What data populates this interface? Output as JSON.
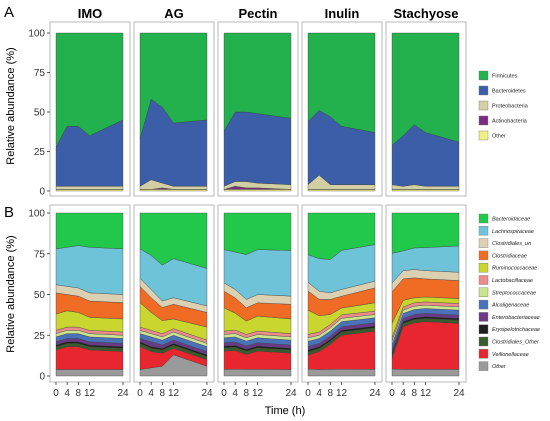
{
  "panel_labels": [
    "A",
    "B"
  ],
  "x_axis": {
    "title": "Time (h)"
  },
  "y_axis": {
    "title": "Relative abundance (%)"
  },
  "chart_data": [
    {
      "type": "area",
      "panel": "A",
      "stacking": "percent",
      "facets": [
        "IMO",
        "AG",
        "Pectin",
        "Inulin",
        "Stachyose"
      ],
      "x": [
        0,
        4,
        8,
        12,
        24
      ],
      "x_ticks": [
        "0",
        "4",
        "8",
        "12",
        "24"
      ],
      "ylim": [
        0,
        100
      ],
      "y_ticks": [
        "0",
        "25",
        "50",
        "75",
        "100"
      ],
      "ylabel": "Relative abundance (%)",
      "xlabel": "Time (h)",
      "grid": false,
      "legend_position": "right",
      "series": [
        {
          "name": "Other",
          "color": "#f0ef86",
          "values_by_facet": [
            [
              1,
              1,
              1,
              1,
              1
            ],
            [
              1,
              1,
              1,
              1,
              1
            ],
            [
              1,
              1,
              1,
              1,
              1
            ],
            [
              1,
              1,
              1,
              1,
              1
            ],
            [
              1,
              1,
              1,
              1,
              1
            ]
          ]
        },
        {
          "name": "Actinobacteria",
          "color": "#7b2d80",
          "values_by_facet": [
            [
              0,
              0,
              0,
              0,
              0
            ],
            [
              0,
              0,
              1,
              0,
              0
            ],
            [
              0,
              2,
              1,
              1,
              0
            ],
            [
              0,
              0,
              0,
              0,
              0
            ],
            [
              0,
              0,
              0,
              0,
              0
            ]
          ]
        },
        {
          "name": "Proteobacteria",
          "color": "#d2cfa4",
          "values_by_facet": [
            [
              2,
              2,
              2,
              2,
              2
            ],
            [
              2,
              6,
              3,
              2,
              2
            ],
            [
              2,
              3,
              4,
              3,
              3
            ],
            [
              3,
              9,
              3,
              3,
              3
            ],
            [
              3,
              2,
              3,
              2,
              2
            ]
          ]
        },
        {
          "name": "Bacteroidetes",
          "color": "#3c5ea9",
          "values_by_facet": [
            [
              25,
              38,
              38,
              32,
              42
            ],
            [
              30,
              50,
              48,
              40,
              42
            ],
            [
              35,
              44,
              44,
              44,
              42
            ],
            [
              40,
              41,
              43,
              37,
              33
            ],
            [
              25,
              32,
              38,
              34,
              28
            ]
          ]
        },
        {
          "name": "Firmicutes",
          "color": "#22b14c",
          "values_by_facet": [
            [
              72,
              59,
              59,
              65,
              55
            ],
            [
              67,
              41,
              47,
              57,
              55
            ],
            [
              62,
              50,
              50,
              51,
              54
            ],
            [
              56,
              49,
              53,
              59,
              63
            ],
            [
              71,
              65,
              58,
              63,
              69
            ]
          ]
        }
      ]
    },
    {
      "type": "area",
      "panel": "B",
      "stacking": "percent",
      "facets": [
        "IMO",
        "AG",
        "Pectin",
        "Inulin",
        "Stachyose"
      ],
      "x": [
        0,
        4,
        8,
        12,
        24
      ],
      "x_ticks": [
        "0",
        "4",
        "8",
        "12",
        "24"
      ],
      "ylim": [
        0,
        100
      ],
      "y_ticks": [
        "0",
        "25",
        "50",
        "75",
        "100"
      ],
      "ylabel": "Relative abundance (%)",
      "xlabel": "Time (h)",
      "grid": false,
      "legend_position": "right",
      "series": [
        {
          "name": "Other",
          "color": "#9a9a9a",
          "values_by_facet": [
            [
              4,
              4,
              4,
              4,
              4
            ],
            [
              4,
              5,
              6,
              13,
              6
            ],
            [
              4,
              4,
              4,
              4,
              4
            ],
            [
              4,
              4,
              4,
              4,
              4
            ],
            [
              4,
              4,
              4,
              4,
              4
            ]
          ]
        },
        {
          "name": "Veillonellaceae",
          "color": "#e8262f",
          "values_by_facet": [
            [
              12,
              14,
              14,
              12,
              11
            ],
            [
              14,
              10,
              8,
              4,
              4
            ],
            [
              11,
              11,
              9,
              11,
              10
            ],
            [
              8,
              11,
              15,
              20,
              23
            ],
            [
              6,
              26,
              28,
              29,
              28
            ]
          ]
        },
        {
          "name": "Clostridiales_Other",
          "color": "#3a5b2c",
          "values_by_facet": [
            [
              2,
              2,
              2,
              2,
              2
            ],
            [
              2,
              2,
              2,
              2,
              2
            ],
            [
              2,
              2,
              2,
              2,
              2
            ],
            [
              2,
              2,
              2,
              2,
              2
            ],
            [
              2,
              2,
              2,
              2,
              2
            ]
          ]
        },
        {
          "name": "Erysipelotrichaceae",
          "color": "#1f1f1f",
          "values_by_facet": [
            [
              1,
              1,
              1,
              1,
              1
            ],
            [
              1,
              1,
              1,
              1,
              1
            ],
            [
              1,
              1,
              1,
              1,
              1
            ],
            [
              1,
              1,
              1,
              1,
              1
            ],
            [
              1,
              1,
              1,
              1,
              1
            ]
          ]
        },
        {
          "name": "Enterobacteriaceae",
          "color": "#6b3a86",
          "values_by_facet": [
            [
              2,
              2,
              2,
              2,
              2
            ],
            [
              2,
              3,
              2,
              2,
              2
            ],
            [
              2,
              2,
              2,
              2,
              2
            ],
            [
              2,
              2,
              2,
              2,
              2
            ],
            [
              2,
              2,
              2,
              2,
              2
            ]
          ]
        },
        {
          "name": "Alcaligenaceae",
          "color": "#4a72b8",
          "values_by_facet": [
            [
              3,
              3,
              3,
              3,
              3
            ],
            [
              3,
              3,
              3,
              3,
              3
            ],
            [
              3,
              3,
              3,
              3,
              3
            ],
            [
              3,
              3,
              3,
              3,
              3
            ],
            [
              3,
              3,
              3,
              3,
              3
            ]
          ]
        },
        {
          "name": "Streptococcaceae",
          "color": "#c9e38e",
          "values_by_facet": [
            [
              2,
              2,
              2,
              2,
              2
            ],
            [
              2,
              2,
              2,
              2,
              2
            ],
            [
              2,
              2,
              2,
              2,
              2
            ],
            [
              2,
              2,
              2,
              2,
              2
            ],
            [
              2,
              2,
              2,
              2,
              2
            ]
          ]
        },
        {
          "name": "Lactobacillaceae",
          "color": "#e88c8c",
          "values_by_facet": [
            [
              2,
              2,
              2,
              2,
              2
            ],
            [
              2,
              2,
              2,
              2,
              2
            ],
            [
              2,
              2,
              2,
              2,
              2
            ],
            [
              2,
              2,
              2,
              2,
              2
            ],
            [
              2,
              2,
              2,
              2,
              2
            ]
          ]
        },
        {
          "name": "Ruminococcaceae",
          "color": "#c9d62f",
          "values_by_facet": [
            [
              10,
              10,
              9,
              8,
              8
            ],
            [
              15,
              11,
              8,
              6,
              8
            ],
            [
              14,
              10,
              8,
              9,
              9
            ],
            [
              14,
              10,
              6,
              4,
              5
            ],
            [
              8,
              4,
              3,
              3,
              3
            ]
          ]
        },
        {
          "name": "Clostridiaceae",
          "color": "#f06b24",
          "values_by_facet": [
            [
              13,
              10,
              10,
              10,
              10
            ],
            [
              10,
              9,
              8,
              9,
              9
            ],
            [
              10,
              9,
              8,
              8,
              9
            ],
            [
              11,
              10,
              9,
              7,
              9
            ],
            [
              18,
              13,
              12,
              11,
              11
            ]
          ]
        },
        {
          "name": "Clostridiales_un",
          "color": "#dcd0b2",
          "values_by_facet": [
            [
              5,
              5,
              5,
              5,
              5
            ],
            [
              5,
              5,
              4,
              4,
              4
            ],
            [
              5,
              5,
              5,
              5,
              5
            ],
            [
              5,
              5,
              4,
              4,
              4
            ],
            [
              5,
              5,
              5,
              5,
              5
            ]
          ]
        },
        {
          "name": "Lachnospiraceae",
          "color": "#6fc3d9",
          "values_by_facet": [
            [
              22,
              24,
              26,
              28,
              28
            ],
            [
              18,
              21,
              22,
              24,
              23
            ],
            [
              20,
              22,
              27,
              27,
              28
            ],
            [
              16,
              20,
              20,
              23,
              22
            ],
            [
              17,
              12,
              13,
              14,
              16
            ]
          ]
        },
        {
          "name": "Bacteroidaceae",
          "color": "#22c84a",
          "values_by_facet": [
            [
              22,
              21,
              20,
              21,
              22
            ],
            [
              22,
              26,
              32,
              28,
              34
            ],
            [
              22,
              23,
              25,
              22,
              23
            ],
            [
              24,
              28,
              28,
              22,
              19
            ],
            [
              23,
              23,
              21,
              21,
              20
            ]
          ]
        }
      ]
    }
  ],
  "legend_A": [
    "Firmicutes",
    "Bacteroidetes",
    "Proteobacteria",
    "Actinobacteria",
    "Other"
  ],
  "legend_B": [
    "Bacteroidaceae",
    "Lachnospiraceae",
    "Clostridiales_un",
    "Clostridiaceae",
    "Ruminococcaceae",
    "Lactobacillaceae",
    "Streptococcaceae",
    "Alcaligenaceae",
    "Enterobacteriaceae",
    "Erysipelotrichaceae",
    "Clostridiales_Other",
    "Veillonellaceae",
    "Other"
  ]
}
